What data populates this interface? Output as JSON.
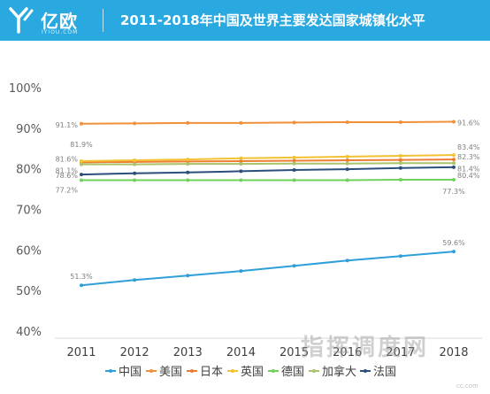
{
  "header": {
    "logo_text": "亿欧",
    "logo_sub": "IYIOU.COM",
    "title": "2011-2018年中国及世界主要发达国家城镇化水平",
    "background": "#2aa8e0"
  },
  "watermark": {
    "text": "指挥调度网",
    "small": "cc.com"
  },
  "chart_data": {
    "type": "line",
    "categories": [
      "2011",
      "2012",
      "2013",
      "2014",
      "2015",
      "2016",
      "2017",
      "2018"
    ],
    "ylim": [
      40,
      100
    ],
    "y_ticks": [
      "40%",
      "50%",
      "60%",
      "70%",
      "80%",
      "90%",
      "100%"
    ],
    "grid": false,
    "legend_position": "bottom",
    "series": [
      {
        "name": "中国",
        "color": "#2e9fd8",
        "values": [
          51.3,
          52.6,
          53.7,
          54.8,
          56.1,
          57.4,
          58.5,
          59.6
        ],
        "start_label": "51.3%",
        "end_label": "59.6%"
      },
      {
        "name": "美国",
        "color": "#f0913a",
        "values": [
          91.1,
          91.2,
          91.3,
          91.3,
          91.4,
          91.5,
          91.5,
          91.6
        ],
        "start_label": "91.1%",
        "end_label": "91.6%"
      },
      {
        "name": "日本",
        "color": "#ed7d31",
        "values": [
          81.6,
          81.7,
          81.8,
          81.9,
          82.0,
          82.1,
          82.2,
          82.3
        ],
        "start_label": "81.6%",
        "end_label": "82.3%"
      },
      {
        "name": "英国",
        "color": "#f2c233",
        "values": [
          81.9,
          82.1,
          82.3,
          82.6,
          82.8,
          83.0,
          83.2,
          83.4
        ],
        "start_label": "81.9%",
        "end_label": "83.4%"
      },
      {
        "name": "德国",
        "color": "#6fd05c",
        "values": [
          77.2,
          77.2,
          77.2,
          77.2,
          77.2,
          77.2,
          77.3,
          77.3
        ],
        "start_label": "77.2%",
        "end_label": "77.3%"
      },
      {
        "name": "加拿大",
        "color": "#a9c46b",
        "values": [
          81.1,
          81.1,
          81.2,
          81.2,
          81.3,
          81.3,
          81.4,
          81.4
        ],
        "start_label": "81.1%",
        "end_label": "81.4%"
      },
      {
        "name": "法国",
        "color": "#2b4f7a",
        "values": [
          78.6,
          78.9,
          79.1,
          79.4,
          79.7,
          79.9,
          80.2,
          80.4
        ],
        "start_label": "78.6%",
        "end_label": "80.4%"
      }
    ]
  }
}
